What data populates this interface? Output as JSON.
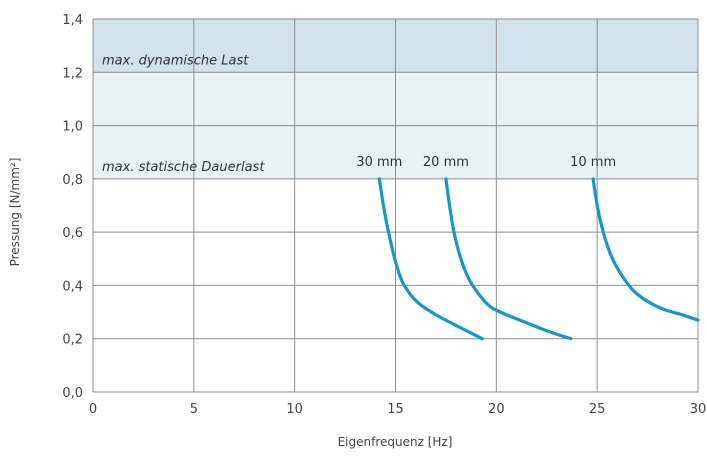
{
  "chart_data": {
    "type": "line",
    "xlabel": "Eigenfrequenz [Hz]",
    "ylabel": "Pressung [N/mm²]",
    "xlim": [
      0,
      30
    ],
    "ylim": [
      0,
      1.4
    ],
    "x_ticks": [
      0,
      5,
      10,
      15,
      20,
      25,
      30
    ],
    "y_ticks": [
      0.0,
      0.2,
      0.4,
      0.6,
      0.8,
      1.0,
      1.2,
      1.4
    ],
    "x_tick_labels": [
      "0",
      "5",
      "10",
      "15",
      "20",
      "25",
      "30"
    ],
    "y_tick_labels": [
      "0,0",
      "0,2",
      "0,4",
      "0,6",
      "0,8",
      "1,0",
      "1,2",
      "1,4"
    ],
    "grid": true,
    "zones": [
      {
        "label": "max. dynamische Last",
        "y_from": 1.2,
        "y_to": 1.4,
        "color": "#d3e1ea"
      },
      {
        "label": "max. statische Dauerlast",
        "y_from": 0.8,
        "y_to": 1.2,
        "color": "#e8f1f6"
      }
    ],
    "series_color": "#1696cf",
    "series": [
      {
        "name": "30 mm",
        "x": [
          14.2,
          14.4,
          14.6,
          14.8,
          15.0,
          15.3,
          15.7,
          16.2,
          17.0,
          18.0,
          19.3
        ],
        "y": [
          0.8,
          0.7,
          0.62,
          0.55,
          0.49,
          0.42,
          0.37,
          0.33,
          0.29,
          0.25,
          0.2
        ]
      },
      {
        "name": "20 mm",
        "x": [
          17.5,
          17.7,
          17.9,
          18.2,
          18.6,
          19.1,
          19.7,
          20.5,
          21.5,
          22.5,
          23.7
        ],
        "y": [
          0.8,
          0.69,
          0.6,
          0.51,
          0.43,
          0.37,
          0.32,
          0.29,
          0.26,
          0.23,
          0.2
        ]
      },
      {
        "name": "10 mm",
        "x": [
          24.8,
          25.0,
          25.3,
          25.7,
          26.2,
          26.8,
          27.5,
          28.3,
          29.2,
          30.0
        ],
        "y": [
          0.8,
          0.7,
          0.6,
          0.51,
          0.44,
          0.38,
          0.34,
          0.31,
          0.29,
          0.27
        ]
      }
    ]
  }
}
